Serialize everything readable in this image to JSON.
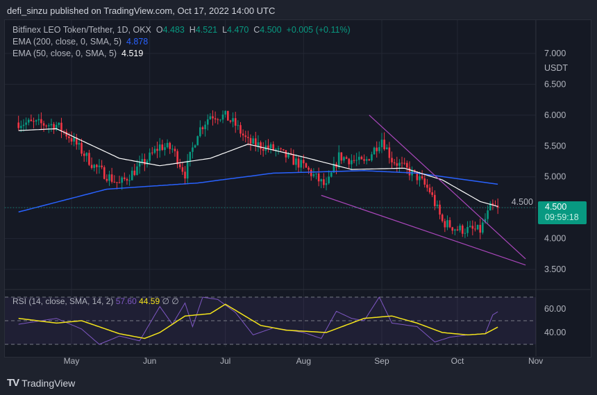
{
  "header": {
    "published": "defi_sinzu published on TradingView.com, Oct 17, 2022 14:00 UTC"
  },
  "legend": {
    "symbol": "Bitfinex LEO Token/Tether, 1D, OKX",
    "o_label": "O",
    "o": "4.483",
    "h_label": "H",
    "h": "4.521",
    "l_label": "L",
    "l": "4.470",
    "c_label": "C",
    "c": "4.500",
    "change": "+0.005 (+0.11%)",
    "ema200_label": "EMA (200, close, 0, SMA, 5)",
    "ema200_value": "4.878",
    "ema50_label": "EMA (50, close, 0, SMA, 5)",
    "ema50_value": "4.519",
    "rsi_label": "RSI (14, close, SMA, 14, 2)",
    "rsi_value": "57.60",
    "rsi_ma_value": "44.59",
    "rsi_extra": "∅ ∅"
  },
  "price_badge": {
    "price": "4.500",
    "countdown": "09:59:18"
  },
  "branding": {
    "logo_text": "TradingView"
  },
  "chart_data": [
    {
      "type": "candlestick",
      "currency": "USDT",
      "date_range": [
        "2022-04-10",
        "2022-10-17"
      ],
      "ylim": [
        3.2,
        7.35
      ],
      "y_ticks": [
        "7.000",
        "6.500",
        "6.000",
        "5.500",
        "5.000",
        "4.500",
        "4.000",
        "3.500"
      ],
      "x_ticks": [
        {
          "label": "May",
          "date": "2022-05-01"
        },
        {
          "label": "Jun",
          "date": "2022-06-01"
        },
        {
          "label": "Jul",
          "date": "2022-07-01"
        },
        {
          "label": "Aug",
          "date": "2022-08-01"
        },
        {
          "label": "Sep",
          "date": "2022-09-01"
        },
        {
          "label": "Oct",
          "date": "2022-10-01"
        },
        {
          "label": "Nov",
          "date": "2022-11-01"
        }
      ],
      "close_path": [
        [
          "2022-04-10",
          5.88
        ],
        [
          "2022-04-25",
          5.84
        ],
        [
          "2022-05-01",
          5.62
        ],
        [
          "2022-05-10",
          5.17
        ],
        [
          "2022-05-20",
          4.88
        ],
        [
          "2022-05-31",
          5.28
        ],
        [
          "2022-06-05",
          5.5
        ],
        [
          "2022-06-10",
          5.45
        ],
        [
          "2022-06-15",
          5.05
        ],
        [
          "2022-06-20",
          5.73
        ],
        [
          "2022-06-25",
          6.0
        ],
        [
          "2022-07-01",
          5.98
        ],
        [
          "2022-07-05",
          5.84
        ],
        [
          "2022-07-10",
          5.56
        ],
        [
          "2022-07-20",
          5.45
        ],
        [
          "2022-08-01",
          5.17
        ],
        [
          "2022-08-10",
          4.83
        ],
        [
          "2022-08-15",
          5.33
        ],
        [
          "2022-08-25",
          5.22
        ],
        [
          "2022-09-01",
          5.62
        ],
        [
          "2022-09-05",
          5.28
        ],
        [
          "2022-09-15",
          5.0
        ],
        [
          "2022-09-20",
          4.77
        ],
        [
          "2022-09-25",
          4.27
        ],
        [
          "2022-10-01",
          4.15
        ],
        [
          "2022-10-10",
          4.13
        ],
        [
          "2022-10-14",
          4.49
        ],
        [
          "2022-10-17",
          4.5
        ]
      ],
      "ema200": {
        "color": "#2962ff",
        "path": [
          [
            "2022-04-10",
            4.43
          ],
          [
            "2022-05-15",
            4.8
          ],
          [
            "2022-06-20",
            4.9
          ],
          [
            "2022-07-20",
            5.06
          ],
          [
            "2022-08-25",
            5.1
          ],
          [
            "2022-09-15",
            5.06
          ],
          [
            "2022-10-17",
            4.88
          ]
        ]
      },
      "ema50": {
        "color": "#ffffff",
        "path": [
          [
            "2022-04-10",
            5.75
          ],
          [
            "2022-04-25",
            5.78
          ],
          [
            "2022-05-20",
            5.3
          ],
          [
            "2022-06-05",
            5.18
          ],
          [
            "2022-06-25",
            5.3
          ],
          [
            "2022-07-10",
            5.53
          ],
          [
            "2022-08-01",
            5.32
          ],
          [
            "2022-08-20",
            5.12
          ],
          [
            "2022-09-10",
            5.14
          ],
          [
            "2022-09-25",
            4.95
          ],
          [
            "2022-10-10",
            4.6
          ],
          [
            "2022-10-17",
            4.52
          ]
        ]
      },
      "trendlines": {
        "color": "#ab47bc",
        "lines": [
          [
            [
              "2022-08-08",
              4.7
            ],
            [
              "2022-10-28",
              3.57
            ]
          ],
          [
            [
              "2022-08-27",
              6.0
            ],
            [
              "2022-10-28",
              3.67
            ]
          ]
        ]
      },
      "up_color": "#089981",
      "down_color": "#f23645",
      "last_price": 4.5
    },
    {
      "type": "line",
      "name": "RSI",
      "ylim": [
        30,
        70
      ],
      "y_ticks": [
        "60.00",
        "40.00"
      ],
      "bands": [
        30,
        50,
        70
      ],
      "rsi": {
        "color": "#7e57c2",
        "path": [
          [
            "2022-04-10",
            47
          ],
          [
            "2022-04-25",
            52
          ],
          [
            "2022-05-05",
            43
          ],
          [
            "2022-05-12",
            30
          ],
          [
            "2022-05-20",
            37
          ],
          [
            "2022-05-28",
            33
          ],
          [
            "2022-06-05",
            62
          ],
          [
            "2022-06-10",
            47
          ],
          [
            "2022-06-15",
            65
          ],
          [
            "2022-06-18",
            45
          ],
          [
            "2022-06-22",
            70
          ],
          [
            "2022-06-28",
            68
          ],
          [
            "2022-07-05",
            57
          ],
          [
            "2022-07-12",
            38
          ],
          [
            "2022-07-20",
            44
          ],
          [
            "2022-08-01",
            40
          ],
          [
            "2022-08-08",
            35
          ],
          [
            "2022-08-14",
            58
          ],
          [
            "2022-08-20",
            52
          ],
          [
            "2022-08-25",
            50
          ],
          [
            "2022-08-31",
            70
          ],
          [
            "2022-09-05",
            48
          ],
          [
            "2022-09-15",
            45
          ],
          [
            "2022-09-22",
            32
          ],
          [
            "2022-09-28",
            36
          ],
          [
            "2022-10-05",
            38
          ],
          [
            "2022-10-12",
            39
          ],
          [
            "2022-10-15",
            55
          ],
          [
            "2022-10-17",
            57.6
          ]
        ]
      },
      "rsi_ma": {
        "color": "#f5e51b",
        "path": [
          [
            "2022-04-10",
            52
          ],
          [
            "2022-04-25",
            48
          ],
          [
            "2022-05-05",
            50
          ],
          [
            "2022-05-20",
            39
          ],
          [
            "2022-05-30",
            35
          ],
          [
            "2022-06-05",
            40
          ],
          [
            "2022-06-15",
            54
          ],
          [
            "2022-06-25",
            56
          ],
          [
            "2022-07-01",
            64
          ],
          [
            "2022-07-15",
            46
          ],
          [
            "2022-07-25",
            42
          ],
          [
            "2022-08-10",
            40
          ],
          [
            "2022-08-25",
            52
          ],
          [
            "2022-09-05",
            54
          ],
          [
            "2022-09-15",
            48
          ],
          [
            "2022-09-25",
            40
          ],
          [
            "2022-10-05",
            38
          ],
          [
            "2022-10-12",
            39
          ],
          [
            "2022-10-17",
            44.59
          ]
        ]
      }
    }
  ]
}
